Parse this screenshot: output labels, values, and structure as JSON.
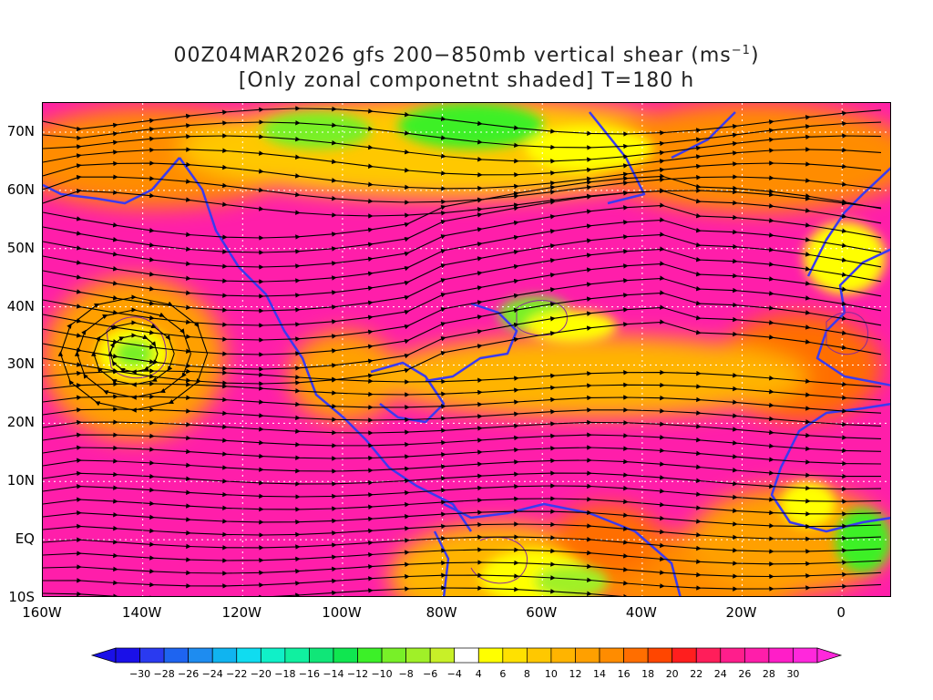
{
  "title": {
    "line1_prefix": "00Z04MAR2026 gfs 200−850mb vertical shear (ms",
    "line1_sup": "−1",
    "line1_suffix": ")",
    "line2": "[Only zonal componetnt shaded] T=180 h"
  },
  "map": {
    "lon_range": [
      -160,
      10
    ],
    "lat_range": [
      -10,
      75
    ],
    "lat_labels": [
      "70N",
      "60N",
      "50N",
      "40N",
      "30N",
      "20N",
      "10N",
      "EQ",
      "10S"
    ],
    "lat_values": [
      70,
      60,
      50,
      40,
      30,
      20,
      10,
      0,
      -10
    ],
    "lon_labels": [
      "160W",
      "140W",
      "120W",
      "100W",
      "80W",
      "60W",
      "40W",
      "20W",
      "0"
    ],
    "lon_values": [
      -160,
      -140,
      -120,
      -100,
      -80,
      -60,
      -40,
      -20,
      0
    ],
    "field": "zonal component of 200-850mb vertical shear",
    "overlay": "shear streamlines",
    "coastline_color": "#3a3af0",
    "contour_color": "#8a2a9a",
    "streamline_color": "#000000",
    "grid": true
  },
  "colorbar": {
    "labels": [
      "−30",
      "−28",
      "−26",
      "−24",
      "−22",
      "−20",
      "−18",
      "−16",
      "−14",
      "−12",
      "−10",
      "−8",
      "−6",
      "−4",
      "4",
      "6",
      "8",
      "10",
      "12",
      "14",
      "16",
      "18",
      "20",
      "22",
      "24",
      "26",
      "28",
      "30"
    ],
    "colors": [
      "#1a10e8",
      "#2a3af0",
      "#1e64f0",
      "#1e8cf0",
      "#10b4f0",
      "#10dcf0",
      "#10f0c8",
      "#10f0a0",
      "#10e678",
      "#10e650",
      "#3cf028",
      "#78f028",
      "#a0f028",
      "#c8f028",
      "#ffffff",
      "#ffff00",
      "#ffe100",
      "#ffc800",
      "#ffb400",
      "#ffa000",
      "#ff8c00",
      "#ff6e00",
      "#ff4600",
      "#ff1e1e",
      "#ff1e5a",
      "#ff1e8c",
      "#ff1eaa",
      "#ff1ec8",
      "#ff28dc"
    ],
    "underflow_color": "#1a10e8",
    "overflow_color": "#ff28dc"
  }
}
